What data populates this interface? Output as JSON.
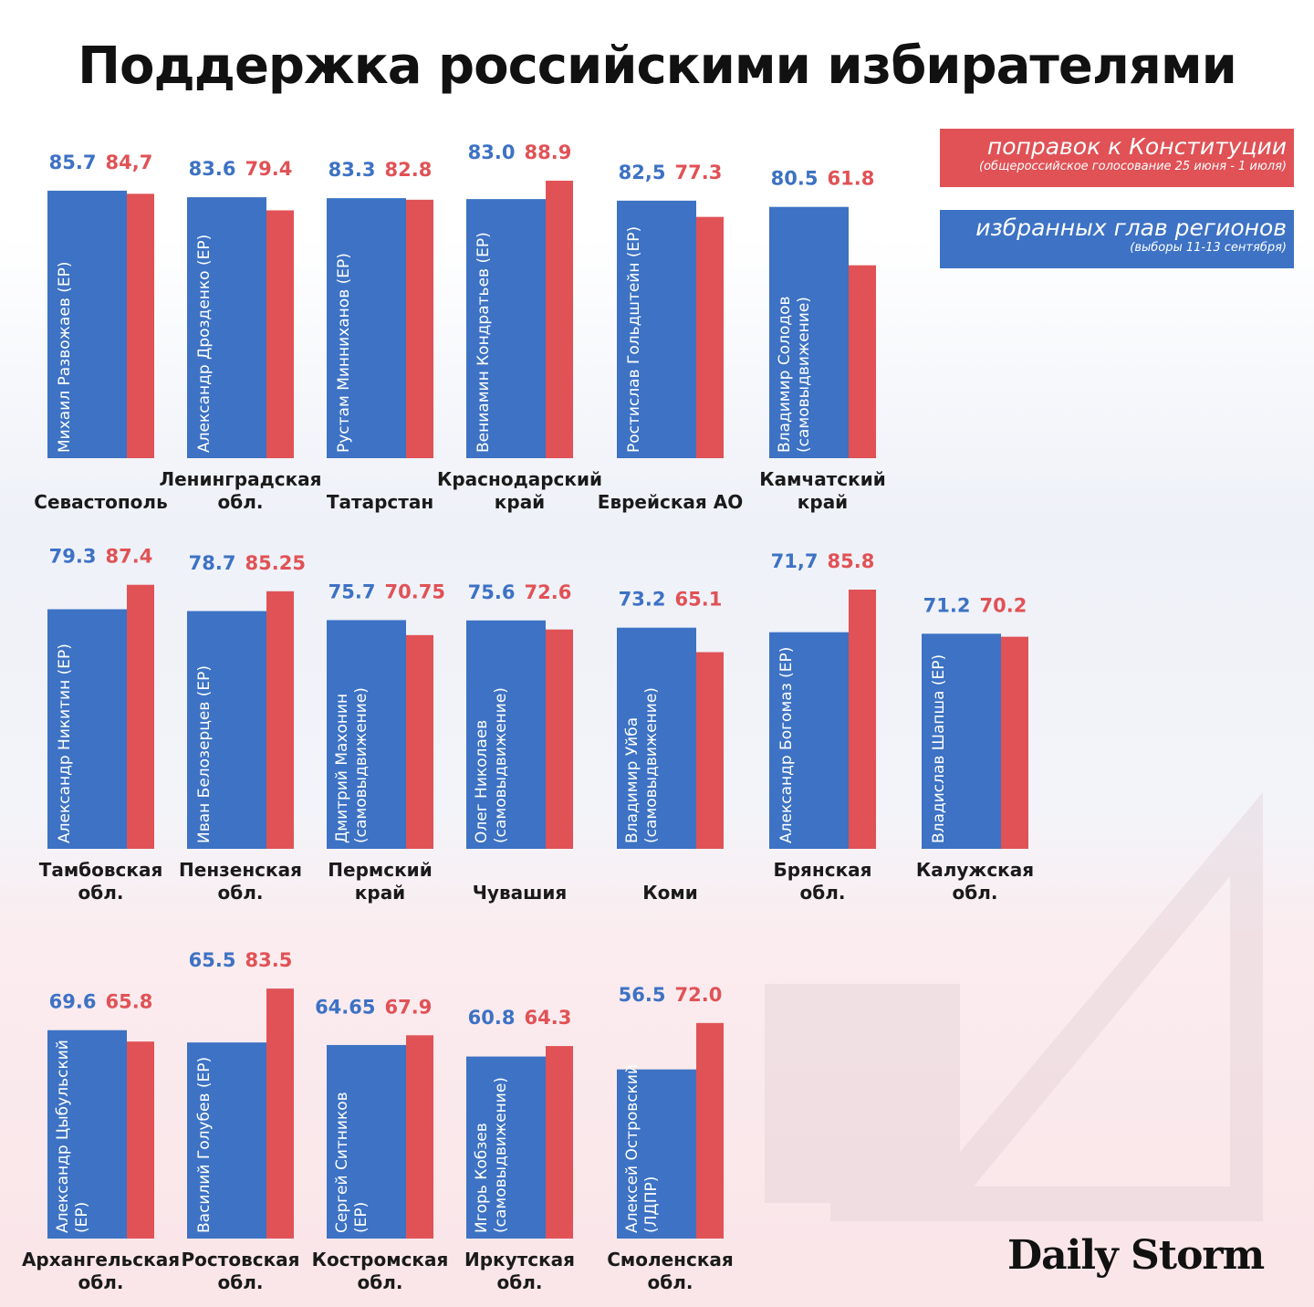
{
  "title": "Поддержка российскими избирателями",
  "legend": {
    "red_label": "поправок к Конституции",
    "red_sublabel": "(общероссийское голосование 25 июня - 1 июля)",
    "blue_label": "избранных глав регионов",
    "blue_sublabel": "(выборы 11-13 сентября)"
  },
  "brand": "Daily Storm",
  "colors": {
    "blue": "#3d72c4",
    "red": "#e05256",
    "blue_text": "#3d72c4",
    "red_text": "#e05256"
  },
  "chart_data": {
    "type": "bar",
    "series": [
      {
        "name": "избранных глав регионов",
        "color": "#3d72c4"
      },
      {
        "name": "поправок к Конституции",
        "color": "#e05256"
      }
    ],
    "items": [
      {
        "region": [
          "Севастополь"
        ],
        "candidate": [
          "Михаил Развожаев (ЕР)"
        ],
        "blue": 85.7,
        "red": 84.7,
        "blue_label": "85.7",
        "red_label": "84,7"
      },
      {
        "region": [
          "Ленинградская",
          "обл."
        ],
        "candidate": [
          "Александр Дрозденко (ЕР)"
        ],
        "blue": 83.6,
        "red": 79.4,
        "blue_label": "83.6",
        "red_label": "79.4"
      },
      {
        "region": [
          "Татарстан"
        ],
        "candidate": [
          "Рустам Минниханов (ЕР)"
        ],
        "blue": 83.3,
        "red": 82.8,
        "blue_label": "83.3",
        "red_label": "82.8"
      },
      {
        "region": [
          "Краснодарский",
          "край"
        ],
        "candidate": [
          "Вениамин Кондратьев (ЕР)"
        ],
        "blue": 83.0,
        "red": 88.9,
        "blue_label": "83.0",
        "red_label": "88.9"
      },
      {
        "region": [
          "Еврейская АО"
        ],
        "candidate": [
          "Ростислав Гольдштейн (ЕР)"
        ],
        "blue": 82.5,
        "red": 77.3,
        "blue_label": "82,5",
        "red_label": "77.3"
      },
      {
        "region": [
          "Камчатский",
          "край"
        ],
        "candidate": [
          "Владимир Солодов",
          "(самовыдвижение)"
        ],
        "blue": 80.5,
        "red": 61.8,
        "blue_label": "80.5",
        "red_label": "61.8"
      },
      {
        "region": [
          "Тамбовская",
          "обл."
        ],
        "candidate": [
          "Александр Никитин (ЕР)"
        ],
        "blue": 79.3,
        "red": 87.4,
        "blue_label": "79.3",
        "red_label": "87.4"
      },
      {
        "region": [
          "Пензенская",
          "обл."
        ],
        "candidate": [
          "Иван Белозерцев (ЕР)"
        ],
        "blue": 78.7,
        "red": 85.25,
        "blue_label": "78.7",
        "red_label": "85.25"
      },
      {
        "region": [
          "Пермский",
          "край"
        ],
        "candidate": [
          "Дмитрий Махонин",
          "(самовыдвижение)"
        ],
        "blue": 75.7,
        "red": 70.75,
        "blue_label": "75.7",
        "red_label": "70.75"
      },
      {
        "region": [
          "Чувашия"
        ],
        "candidate": [
          "Олег Николаев",
          "(самовыдвижение)"
        ],
        "blue": 75.6,
        "red": 72.6,
        "blue_label": "75.6",
        "red_label": "72.6"
      },
      {
        "region": [
          "Коми"
        ],
        "candidate": [
          "Владимир Уйба",
          "(самовыдвижение)"
        ],
        "blue": 73.2,
        "red": 65.1,
        "blue_label": "73.2",
        "red_label": "65.1"
      },
      {
        "region": [
          "Брянская",
          "обл."
        ],
        "candidate": [
          "Александр Богомаз (ЕР)"
        ],
        "blue": 71.7,
        "red": 85.8,
        "blue_label": "71,7",
        "red_label": "85.8"
      },
      {
        "region": [
          "Калужская",
          "обл."
        ],
        "candidate": [
          "Владислав Шапша (ЕР)"
        ],
        "blue": 71.2,
        "red": 70.2,
        "blue_label": "71.2",
        "red_label": "70.2"
      },
      {
        "region": [
          "Архангельская",
          "обл."
        ],
        "candidate": [
          "Александр Цыбульский",
          "(ЕР)"
        ],
        "blue": 69.6,
        "red": 65.8,
        "blue_label": "69.6",
        "red_label": "65.8"
      },
      {
        "region": [
          "Ростовская",
          "обл."
        ],
        "candidate": [
          "Василий Голубев (ЕР)"
        ],
        "blue": 65.5,
        "red": 83.5,
        "blue_label": "65.5",
        "red_label": "83.5"
      },
      {
        "region": [
          "Костромская",
          "обл."
        ],
        "candidate": [
          "Сергей Ситников",
          "(ЕР)"
        ],
        "blue": 64.65,
        "red": 67.9,
        "blue_label": "64.65",
        "red_label": "67.9"
      },
      {
        "region": [
          "Иркутская",
          "обл."
        ],
        "candidate": [
          "Игорь Кобзев",
          "(самовыдвижение)"
        ],
        "blue": 60.8,
        "red": 64.3,
        "blue_label": "60.8",
        "red_label": "64.3"
      },
      {
        "region": [
          "Смоленская",
          "обл."
        ],
        "candidate": [
          "Алексей Островский",
          "(ЛДПР)"
        ],
        "blue": 56.5,
        "red": 72.0,
        "blue_label": "56.5",
        "red_label": "72.0"
      }
    ]
  }
}
